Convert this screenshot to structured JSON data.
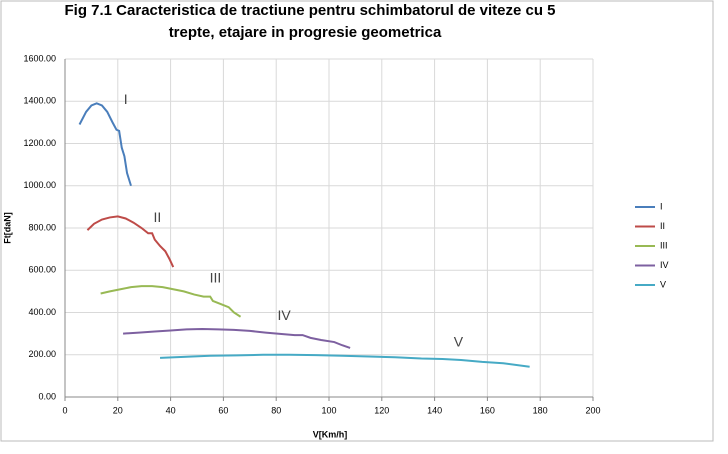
{
  "chart_data": {
    "type": "line",
    "title": [
      "Fig 7.1 Caracteristica de tractiune pentru schimbatorul de viteze cu 5",
      "trepte, etajare in progresie geometrica"
    ],
    "x_label": "V[Km/h]",
    "y_label": "Ft[daN]",
    "xlim": [
      0,
      200
    ],
    "xticks": [
      0,
      20,
      40,
      60,
      80,
      100,
      120,
      140,
      160,
      180,
      200
    ],
    "ylim": [
      0,
      1600
    ],
    "yticks": [
      {
        "value": 0,
        "label": "0.00"
      },
      {
        "value": 200,
        "label": "200.00"
      },
      {
        "value": 400,
        "label": "400.00"
      },
      {
        "value": 600,
        "label": "600.00"
      },
      {
        "value": 800,
        "label": "800.00"
      },
      {
        "value": 1000,
        "label": "1000.00"
      },
      {
        "value": 1200,
        "label": "1200.00"
      },
      {
        "value": 1400,
        "label": "1400.00"
      },
      {
        "value": 1600,
        "label": "1600.00"
      }
    ],
    "grid": true,
    "legend": "right",
    "series": [
      {
        "name": "I",
        "color": "#4a7ebb",
        "x": [
          5.5,
          8,
          10,
          12,
          14,
          16,
          18,
          19.5,
          20.5,
          21,
          21.5,
          22.5,
          23.5,
          25
        ],
        "values": [
          1290,
          1350,
          1380,
          1390,
          1380,
          1350,
          1300,
          1265,
          1260,
          1220,
          1180,
          1140,
          1060,
          1000
        ]
      },
      {
        "name": "II",
        "color": "#be4b48",
        "x": [
          8.5,
          11,
          14,
          17,
          20,
          23,
          26,
          29,
          31.5,
          33,
          34,
          36,
          38,
          39.5,
          41
        ],
        "values": [
          790,
          820,
          840,
          850,
          855,
          845,
          825,
          800,
          775,
          775,
          745,
          715,
          690,
          655,
          615
        ]
      },
      {
        "name": "III",
        "color": "#98b954",
        "x": [
          13.5,
          17,
          21,
          25,
          29,
          33,
          37,
          41,
          45,
          49,
          52.5,
          55,
          56,
          59,
          62,
          64,
          66.5
        ],
        "values": [
          490,
          500,
          510,
          520,
          525,
          525,
          520,
          510,
          500,
          485,
          475,
          475,
          455,
          440,
          425,
          400,
          380
        ]
      },
      {
        "name": "IV",
        "color": "#7d60a0",
        "x": [
          22,
          28,
          34,
          40,
          46,
          52,
          58,
          64,
          70,
          76,
          82,
          87,
          90,
          93,
          97,
          102,
          105,
          108
        ],
        "values": [
          300,
          305,
          310,
          315,
          320,
          322,
          320,
          318,
          313,
          305,
          298,
          293,
          293,
          280,
          270,
          260,
          245,
          232
        ]
      },
      {
        "name": "V",
        "color": "#46aac5",
        "x": [
          36,
          45,
          55,
          65,
          75,
          85,
          95,
          105,
          115,
          125,
          135,
          143,
          150,
          158,
          166,
          176
        ],
        "values": [
          185,
          190,
          195,
          197,
          200,
          200,
          198,
          195,
          192,
          188,
          182,
          180,
          175,
          166,
          160,
          143
        ]
      }
    ],
    "annotations": [
      {
        "text": "I",
        "x": 23,
        "y": 1405
      },
      {
        "text": "II",
        "x": 35,
        "y": 847
      },
      {
        "text": "III",
        "x": 57,
        "y": 560
      },
      {
        "text": "IV",
        "x": 83,
        "y": 383
      },
      {
        "text": "V",
        "x": 149,
        "y": 256
      }
    ]
  }
}
